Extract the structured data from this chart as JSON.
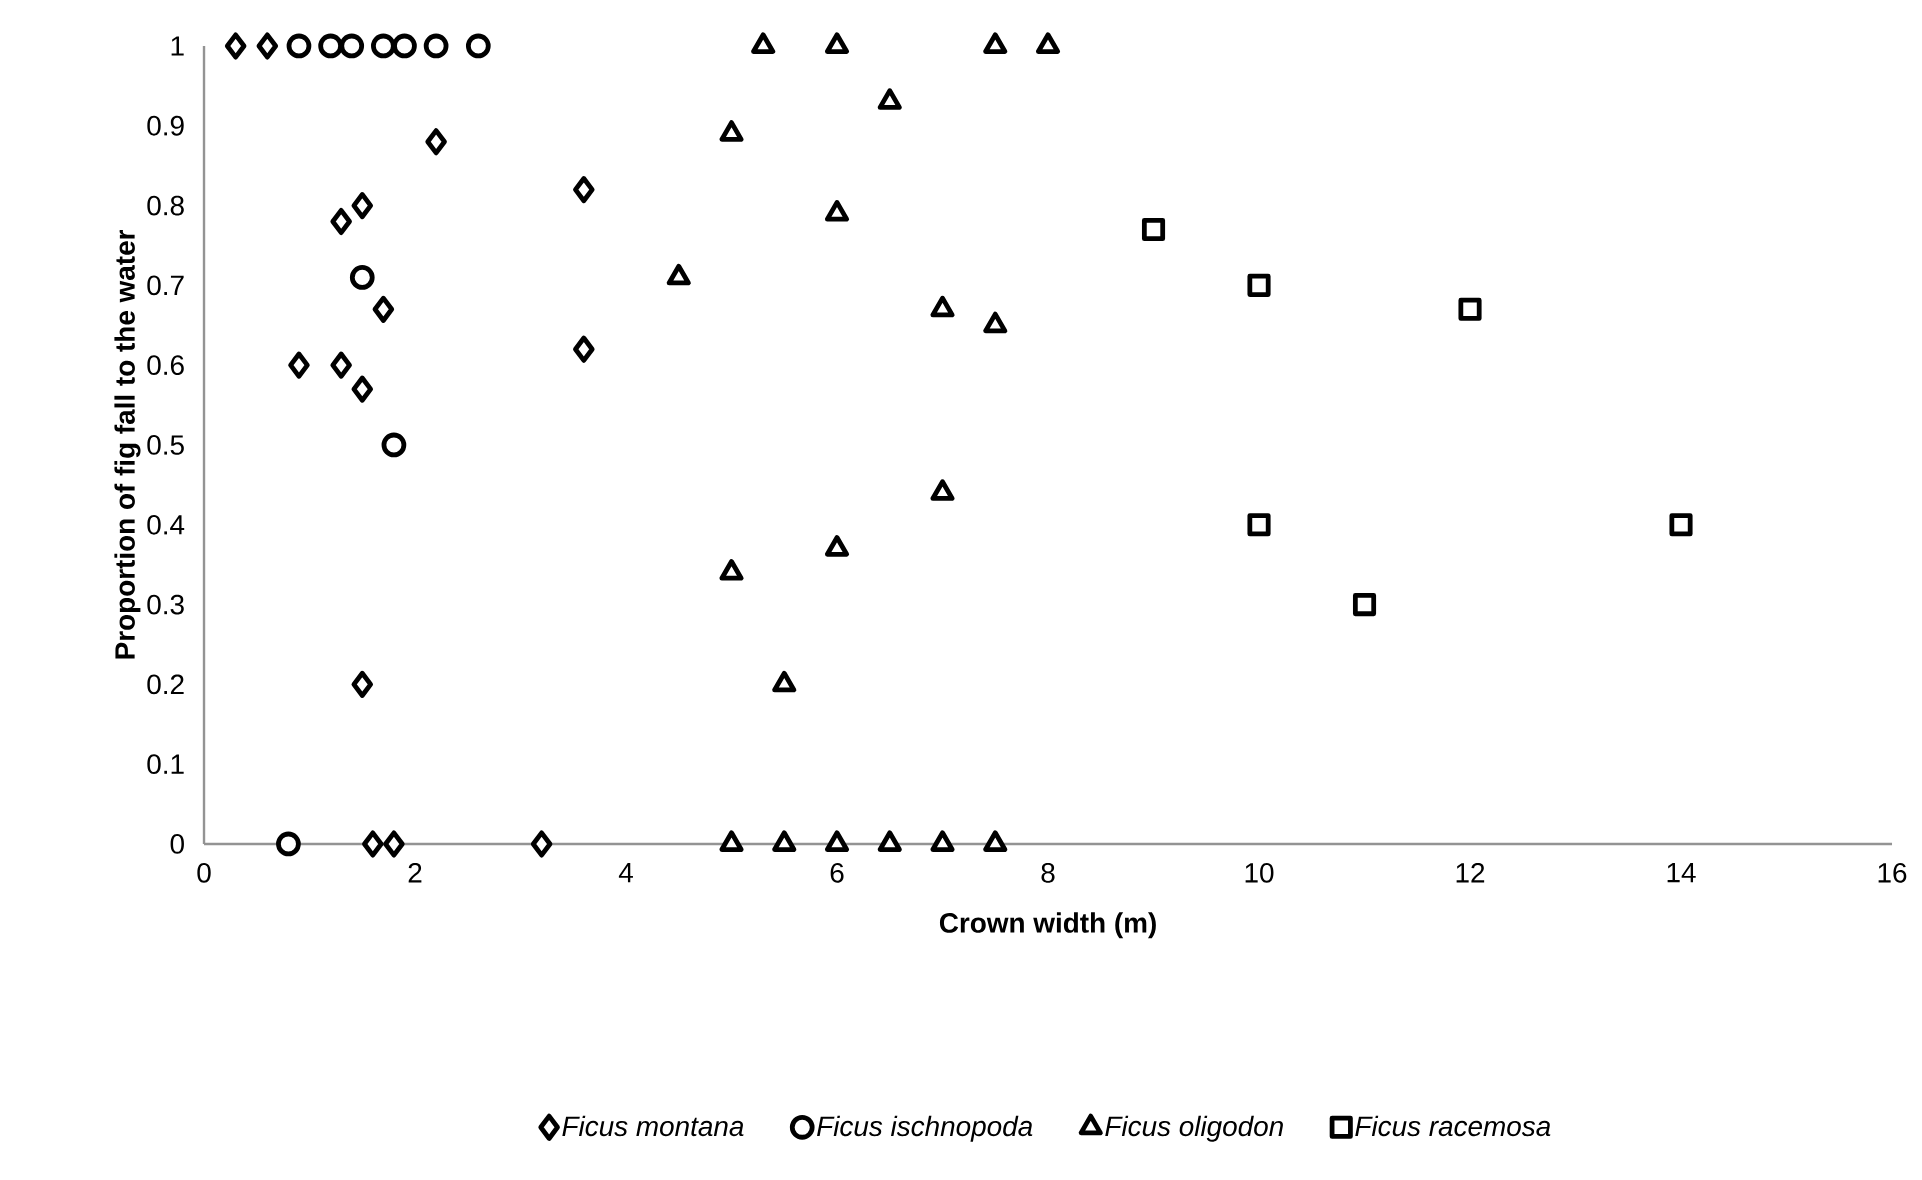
{
  "chart_data": {
    "type": "scatter",
    "xlabel": "Crown width (m)",
    "ylabel": "Proportion of fig fall to the water",
    "xlim": [
      0,
      16
    ],
    "xticks": [
      0,
      2,
      4,
      6,
      8,
      10,
      12,
      14,
      16
    ],
    "ylim": [
      0,
      1
    ],
    "yticks": [
      0,
      0.1,
      0.2,
      0.3,
      0.4,
      0.5,
      0.6,
      0.7,
      0.8,
      0.9,
      1
    ],
    "grid": false,
    "legend": "bottom",
    "series": [
      {
        "name": "Ficus montana",
        "color": "#000000",
        "marker": "diamond",
        "x": [
          0.3,
          0.6,
          2.2,
          1.3,
          1.5,
          1.7,
          3.6,
          3.6,
          0.9,
          1.3,
          1.5,
          1.5,
          1.6,
          1.8,
          3.2
        ],
        "values": [
          1,
          1,
          0.88,
          0.78,
          0.8,
          0.67,
          0.82,
          0.62,
          0.6,
          0.6,
          0.57,
          0.2,
          0,
          0,
          0
        ]
      },
      {
        "name": "Ficus ischnopoda",
        "color": "#000000",
        "marker": "circle",
        "x": [
          0.9,
          1.2,
          1.4,
          1.7,
          1.9,
          2.2,
          2.6,
          1.5,
          1.8,
          0.8
        ],
        "values": [
          1,
          1,
          1,
          1,
          1,
          1,
          1,
          0.71,
          0.5,
          0
        ]
      },
      {
        "name": "Ficus oligodon",
        "color": "#000000",
        "marker": "triangle",
        "x": [
          5.3,
          6,
          7.5,
          8,
          6.5,
          5,
          6,
          4.5,
          7,
          7.5,
          7,
          6,
          5,
          5.5,
          5,
          5.5,
          6,
          6.5,
          7,
          7.5
        ],
        "values": [
          1,
          1,
          1,
          1,
          0.93,
          0.89,
          0.79,
          0.71,
          0.67,
          0.65,
          0.44,
          0.37,
          0.34,
          0.2,
          0,
          0,
          0,
          0,
          0,
          0
        ]
      },
      {
        "name": "Ficus racemosa",
        "color": "#000000",
        "marker": "square",
        "x": [
          9,
          10,
          12,
          10,
          14,
          11
        ],
        "values": [
          0.77,
          0.7,
          0.67,
          0.4,
          0.4,
          0.3
        ]
      }
    ]
  }
}
